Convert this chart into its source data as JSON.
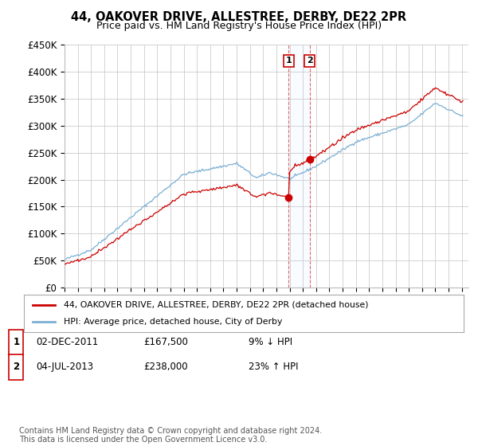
{
  "title": "44, OAKOVER DRIVE, ALLESTREE, DERBY, DE22 2PR",
  "subtitle": "Price paid vs. HM Land Registry's House Price Index (HPI)",
  "ylim": [
    0,
    450000
  ],
  "xlim_start": 1995.0,
  "xlim_end": 2025.5,
  "legend_line1": "44, OAKOVER DRIVE, ALLESTREE, DERBY, DE22 2PR (detached house)",
  "legend_line2": "HPI: Average price, detached house, City of Derby",
  "sale1_date": "02-DEC-2011",
  "sale1_price": "£167,500",
  "sale1_hpi": "9% ↓ HPI",
  "sale2_date": "04-JUL-2013",
  "sale2_price": "£238,000",
  "sale2_hpi": "23% ↑ HPI",
  "footer": "Contains HM Land Registry data © Crown copyright and database right 2024.\nThis data is licensed under the Open Government Licence v3.0.",
  "sale_color": "#cc0000",
  "hpi_color": "#7bafd4",
  "marker1_x": 2011.92,
  "marker1_y": 167500,
  "marker2_x": 2013.5,
  "marker2_y": 238000,
  "background_color": "#ffffff",
  "yticks": [
    0,
    50000,
    100000,
    150000,
    200000,
    250000,
    300000,
    350000,
    400000,
    450000
  ],
  "ylabels": [
    "£0",
    "£50K",
    "£100K",
    "£150K",
    "£200K",
    "£250K",
    "£300K",
    "£350K",
    "£400K",
    "£450K"
  ]
}
